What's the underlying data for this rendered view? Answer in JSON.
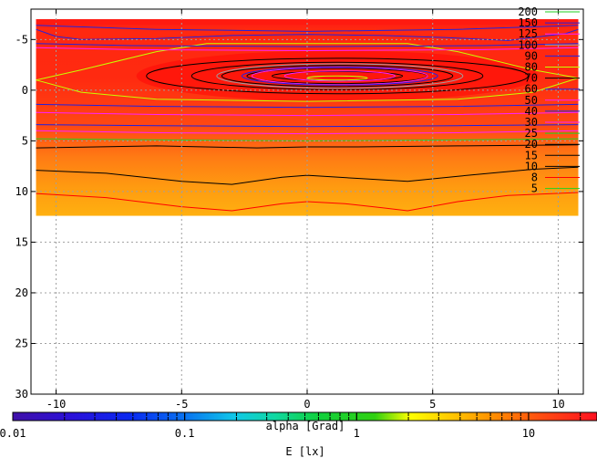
{
  "chart_data": {
    "type": "heatmap",
    "title": "",
    "xlabel": "alpha [Grad]",
    "colorbar_label": "E [lx]",
    "xlim": [
      -11,
      11
    ],
    "ylim": [
      30,
      -8
    ],
    "x_ticks": [
      -10,
      -5,
      0,
      5,
      10
    ],
    "y_ticks": [
      -5,
      0,
      5,
      10,
      15,
      20,
      25,
      30
    ],
    "grid": true,
    "data_extent": {
      "x": [
        -10.8,
        10.8
      ],
      "y": [
        -7.0,
        12.4
      ]
    },
    "colorbar": {
      "scale": "log",
      "range": [
        0.01,
        25
      ],
      "ticks": [
        0.01,
        0.1,
        1,
        10
      ],
      "tick_labels": [
        "0.01",
        "0.1",
        "1",
        "10"
      ]
    },
    "contour_legend": [
      {
        "level": "200",
        "color": "#20d020"
      },
      {
        "level": "150",
        "color": "#2020e0"
      },
      {
        "level": "125",
        "color": "#ff20ff"
      },
      {
        "level": "100",
        "color": "#a0a0a0"
      },
      {
        "level": "90",
        "color": "#2020e0"
      },
      {
        "level": "80",
        "color": "#c8ff00"
      },
      {
        "level": "70",
        "color": "#000000"
      },
      {
        "level": "60",
        "color": "#2020e0"
      },
      {
        "level": "50",
        "color": "#ff20ff"
      },
      {
        "level": "40",
        "color": "#2020e0"
      },
      {
        "level": "30",
        "color": "#ff20ff"
      },
      {
        "level": "25",
        "color": "#20d020"
      },
      {
        "level": "20",
        "color": "#000000"
      },
      {
        "level": "15",
        "color": "#000000"
      },
      {
        "level": "10",
        "color": "#000000"
      },
      {
        "level": "8",
        "color": "#ff0000"
      },
      {
        "level": "5",
        "color": "#20d020"
      }
    ],
    "contours": [
      {
        "level": 70,
        "color": "#000000",
        "cx": 1.2,
        "cy": -1.4,
        "rx": 2.6,
        "ry": 0.45
      },
      {
        "level": 70,
        "color": "#000000",
        "cx": 1.2,
        "cy": -1.4,
        "rx": 3.6,
        "ry": 0.75
      },
      {
        "level": 70,
        "color": "#000000",
        "cx": 1.2,
        "cy": -1.4,
        "rx": 4.6,
        "ry": 1.05
      },
      {
        "level": 70,
        "color": "#000000",
        "cx": 1.2,
        "cy": -1.4,
        "rx": 5.8,
        "ry": 1.35
      },
      {
        "level": 70,
        "color": "#000000",
        "cx": 1.2,
        "cy": -1.4,
        "rx": 7.6,
        "ry": 1.75
      },
      {
        "level": 100,
        "color": "#a0a0a0",
        "cx": 1.3,
        "cy": -1.4,
        "rx": 4.9,
        "ry": 1.2
      },
      {
        "level": 50,
        "color": "#ff20ff",
        "cx": 1.3,
        "cy": -1.4,
        "rx": 3.5,
        "ry": 0.85
      },
      {
        "level": 50,
        "color": "#ff20ff",
        "cx": 1.3,
        "cy": -1.4,
        "rx": 2.2,
        "ry": 0.5
      },
      {
        "level": 60,
        "color": "#2020e0",
        "cx": 1.3,
        "cy": -1.4,
        "rx": 3.9,
        "ry": 0.9
      },
      {
        "level": 80,
        "color": "#c8ff00",
        "cx": 1.2,
        "cy": -1.2,
        "rx": 1.2,
        "ry": 0.2
      }
    ],
    "contour_lines": [
      {
        "level": 80,
        "color": "#c8ff00",
        "points": [
          [
            -10.8,
            -1.0
          ],
          [
            -9,
            -2.0
          ],
          [
            -6,
            -3.8
          ],
          [
            -4,
            -4.6
          ],
          [
            4,
            -4.6
          ],
          [
            6,
            -3.8
          ],
          [
            9,
            -2.0
          ],
          [
            10.8,
            -1.2
          ]
        ]
      },
      {
        "level": 80,
        "color": "#c8ff00",
        "points": [
          [
            -10.8,
            -1.0
          ],
          [
            -9,
            0.2
          ],
          [
            -6,
            0.9
          ],
          [
            0,
            1.1
          ],
          [
            6,
            0.9
          ],
          [
            9,
            0.2
          ],
          [
            10.8,
            -1.2
          ]
        ]
      },
      {
        "level": 150,
        "color": "#2020e0",
        "points": [
          [
            -10.8,
            -6.4
          ],
          [
            -6,
            -6.0
          ],
          [
            0,
            -5.8
          ],
          [
            6,
            -6.0
          ],
          [
            10.8,
            -6.4
          ]
        ]
      },
      {
        "level": 125,
        "color": "#ff20ff",
        "points": [
          [
            -10.8,
            -4.2
          ],
          [
            -7,
            -4.0
          ],
          [
            0,
            -3.9
          ],
          [
            7,
            -4.0
          ],
          [
            10.8,
            -4.2
          ]
        ]
      },
      {
        "level": 90,
        "color": "#2020e0",
        "points": [
          [
            -10.8,
            -4.6
          ],
          [
            -7,
            -4.4
          ],
          [
            0,
            -4.3
          ],
          [
            7,
            -4.4
          ],
          [
            10.8,
            -4.6
          ]
        ]
      },
      {
        "level": 60,
        "color": "#2020e0",
        "points": [
          [
            -10.8,
            1.4
          ],
          [
            -6,
            1.6
          ],
          [
            0,
            1.7
          ],
          [
            6,
            1.6
          ],
          [
            10.8,
            1.4
          ]
        ]
      },
      {
        "level": 50,
        "color": "#ff20ff",
        "points": [
          [
            -10.8,
            2.2
          ],
          [
            -6,
            2.4
          ],
          [
            0,
            2.5
          ],
          [
            6,
            2.4
          ],
          [
            10.8,
            2.2
          ]
        ]
      },
      {
        "level": 40,
        "color": "#2020e0",
        "points": [
          [
            -10.8,
            3.4
          ],
          [
            -6,
            3.5
          ],
          [
            0,
            3.6
          ],
          [
            6,
            3.5
          ],
          [
            10.8,
            3.4
          ]
        ]
      },
      {
        "level": 30,
        "color": "#ff20ff",
        "points": [
          [
            -10.8,
            4.0
          ],
          [
            -6,
            4.2
          ],
          [
            0,
            4.3
          ],
          [
            6,
            4.2
          ],
          [
            10.8,
            4.0
          ]
        ]
      },
      {
        "level": 25,
        "color": "#20d020",
        "points": [
          [
            -10.8,
            4.8
          ],
          [
            -6,
            4.9
          ],
          [
            0,
            5.0
          ],
          [
            6,
            4.9
          ],
          [
            10.8,
            4.8
          ]
        ]
      },
      {
        "level": 15,
        "color": "#000000",
        "points": [
          [
            -10.8,
            5.7
          ],
          [
            -6,
            5.5
          ],
          [
            -2,
            5.7
          ],
          [
            0,
            5.6
          ],
          [
            2,
            5.6
          ],
          [
            6,
            5.5
          ],
          [
            10.8,
            5.4
          ]
        ]
      },
      {
        "level": 10,
        "color": "#000000",
        "points": [
          [
            -10.8,
            7.9
          ],
          [
            -8,
            8.2
          ],
          [
            -5,
            9.0
          ],
          [
            -3,
            9.3
          ],
          [
            -1,
            8.6
          ],
          [
            0,
            8.4
          ],
          [
            2,
            8.7
          ],
          [
            4,
            9.0
          ],
          [
            6,
            8.5
          ],
          [
            9,
            7.8
          ],
          [
            10.8,
            7.6
          ]
        ]
      },
      {
        "level": 8,
        "color": "#ff0000",
        "points": [
          [
            -10.8,
            10.2
          ],
          [
            -8,
            10.6
          ],
          [
            -5,
            11.5
          ],
          [
            -3,
            11.9
          ],
          [
            -1,
            11.2
          ],
          [
            0,
            11.0
          ],
          [
            1.5,
            11.2
          ],
          [
            3,
            11.6
          ],
          [
            4,
            11.9
          ],
          [
            6,
            11.0
          ],
          [
            8,
            10.4
          ],
          [
            10.8,
            10.1
          ]
        ]
      },
      {
        "level": 150,
        "color": "#2020e0",
        "points": [
          [
            -10.8,
            -6.0
          ],
          [
            -10,
            -5.3
          ],
          [
            -9,
            -5.0
          ],
          [
            -6,
            -5.1
          ],
          [
            -3,
            -5.4
          ],
          [
            0,
            -5.5
          ],
          [
            3,
            -5.4
          ],
          [
            5.5,
            -5.2
          ],
          [
            8,
            -4.9
          ],
          [
            10.3,
            -5.6
          ],
          [
            10.8,
            -6.0
          ]
        ]
      }
    ]
  }
}
